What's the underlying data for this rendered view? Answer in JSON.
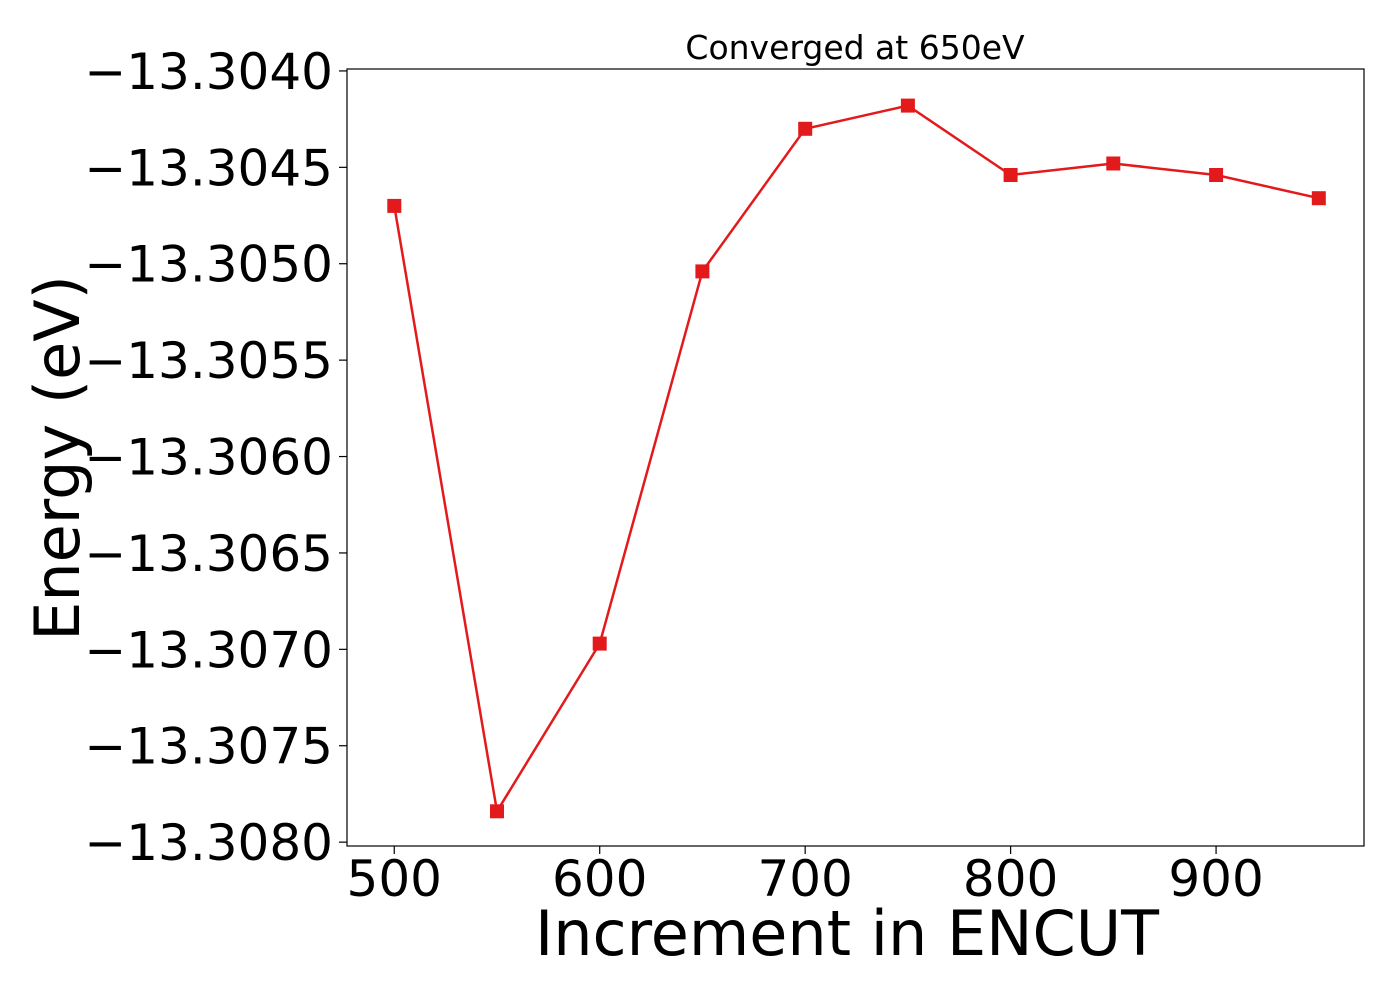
{
  "chart_data": {
    "type": "line",
    "title": "Converged at 650eV",
    "xlabel": "Increment in ENCUT",
    "ylabel": "Energy (eV)",
    "x": [
      500,
      550,
      600,
      650,
      700,
      750,
      800,
      850,
      900,
      950
    ],
    "series": [
      {
        "values": [
          -13.3047,
          -13.30784,
          -13.30697,
          -13.30504,
          -13.3043,
          -13.30418,
          -13.30454,
          -13.30448,
          -13.30454,
          -13.30466
        ],
        "color": "#e31a1c",
        "marker": "square"
      }
    ],
    "xlim": [
      477,
      972
    ],
    "ylim": [
      -13.30802,
      -13.30399
    ],
    "x_ticks": [
      500,
      600,
      700,
      800,
      900
    ],
    "x_tick_labels": [
      "500",
      "600",
      "700",
      "800",
      "900"
    ],
    "y_ticks": [
      -13.304,
      -13.3045,
      -13.305,
      -13.3055,
      -13.306,
      -13.3065,
      -13.307,
      -13.3075,
      -13.308
    ],
    "y_tick_labels": [
      "−13.3040",
      "−13.3045",
      "−13.3050",
      "−13.3055",
      "−13.3060",
      "−13.3065",
      "−13.3070",
      "−13.3075",
      "−13.3080"
    ],
    "grid": false,
    "legend": false
  }
}
